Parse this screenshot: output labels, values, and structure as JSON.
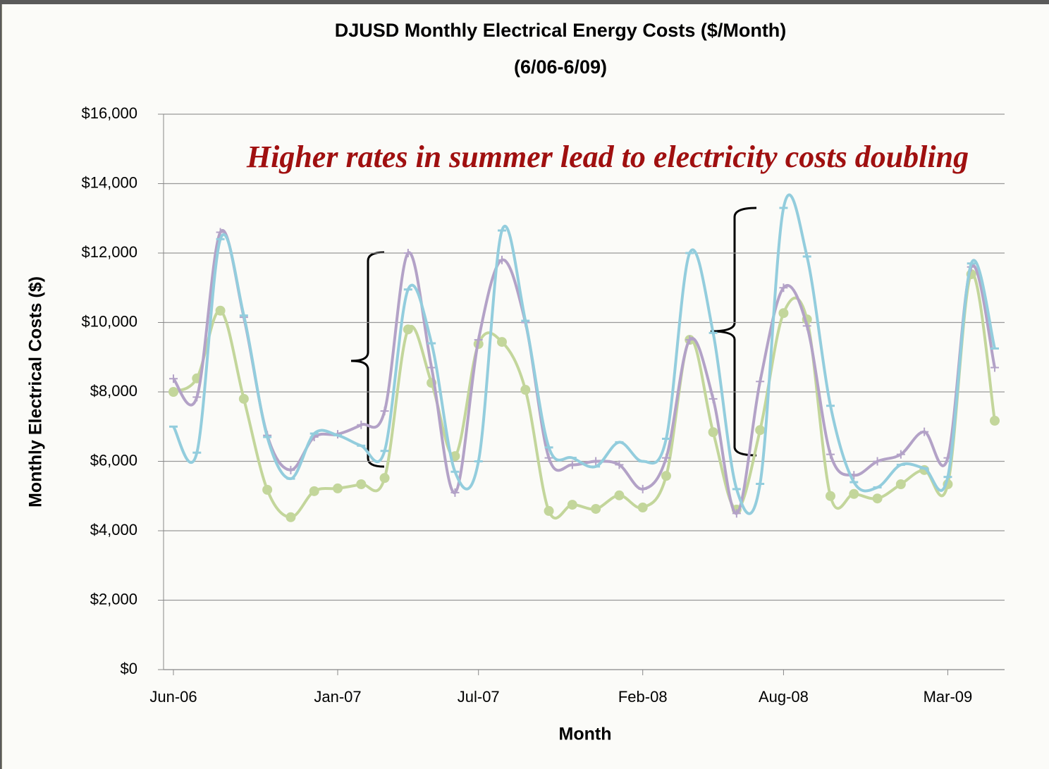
{
  "chart_data": {
    "type": "line",
    "title": "DJUSD Monthly Electrical Energy Costs ($/Month)",
    "subtitle": "(6/06-6/09)",
    "annotation": "Higher rates in summer lead to electricity costs doubling",
    "xlabel": "Month",
    "ylabel": "Monthly Electrical Costs ($)",
    "x": [
      "2006-06",
      "2006-07",
      "2006-08",
      "2006-09",
      "2006-10",
      "2006-11",
      "2006-12",
      "2007-01",
      "2007-02",
      "2007-03",
      "2007-04",
      "2007-05",
      "2007-06",
      "2007-07",
      "2007-08",
      "2007-09",
      "2007-10",
      "2007-11",
      "2007-12",
      "2008-01",
      "2008-02",
      "2008-03",
      "2008-04",
      "2008-05",
      "2008-06",
      "2008-07",
      "2008-08",
      "2008-09",
      "2008-10",
      "2008-11",
      "2008-12",
      "2009-01",
      "2009-02",
      "2009-03",
      "2009-04",
      "2009-05"
    ],
    "xlim": [
      "2006-06",
      "2009-05"
    ],
    "xticks": [
      {
        "value": "2006-06",
        "label": "Jun-06"
      },
      {
        "value": "2007-01",
        "label": "Jan-07"
      },
      {
        "value": "2007-07",
        "label": "Jul-07"
      },
      {
        "value": "2008-02",
        "label": "Feb-08"
      },
      {
        "value": "2008-08",
        "label": "Aug-08"
      },
      {
        "value": "2009-03",
        "label": "Mar-09"
      }
    ],
    "ylim": [
      0,
      16000
    ],
    "yticks": [
      {
        "value": 0,
        "label": "$0"
      },
      {
        "value": 2000,
        "label": "$2,000"
      },
      {
        "value": 4000,
        "label": "$4,000"
      },
      {
        "value": 6000,
        "label": "$6,000"
      },
      {
        "value": 8000,
        "label": "$8,000"
      },
      {
        "value": 10000,
        "label": "$10,000"
      },
      {
        "value": 12000,
        "label": "$12,000"
      },
      {
        "value": 14000,
        "label": "$14,000"
      },
      {
        "value": 16000,
        "label": "$16,000"
      }
    ],
    "grid": true,
    "series": [
      {
        "color": "#c3d69b",
        "marker": "circle",
        "values": [
          8000,
          8390,
          10340,
          7800,
          5180,
          4390,
          5140,
          5220,
          5340,
          5520,
          9800,
          8260,
          6150,
          9380,
          9440,
          8060,
          4570,
          4750,
          4630,
          5020,
          4670,
          5580,
          9500,
          6840,
          4610,
          6900,
          10270,
          10090,
          5000,
          5060,
          4930,
          5340,
          5750,
          5340,
          11390,
          7170
        ]
      },
      {
        "color": "#b3a2c7",
        "marker": "plus",
        "values": [
          8380,
          7850,
          12600,
          10150,
          6750,
          5750,
          6700,
          6780,
          7050,
          7450,
          12000,
          8700,
          5100,
          9500,
          11800,
          10000,
          6100,
          5900,
          6000,
          5900,
          5200,
          6100,
          9500,
          7800,
          4500,
          8300,
          11000,
          9900,
          6200,
          5600,
          6000,
          6200,
          6850,
          6100,
          11600,
          8700
        ]
      },
      {
        "color": "#93cddd",
        "marker": "dash",
        "values": [
          7000,
          6250,
          12400,
          10200,
          6700,
          5500,
          6800,
          6750,
          6450,
          6300,
          10950,
          9400,
          5700,
          6000,
          12650,
          10050,
          6400,
          6100,
          5850,
          6550,
          6000,
          6650,
          12000,
          9700,
          5200,
          5350,
          13300,
          11900,
          7600,
          5400,
          5250,
          5900,
          5800,
          5550,
          11700,
          9250
        ]
      }
    ]
  }
}
